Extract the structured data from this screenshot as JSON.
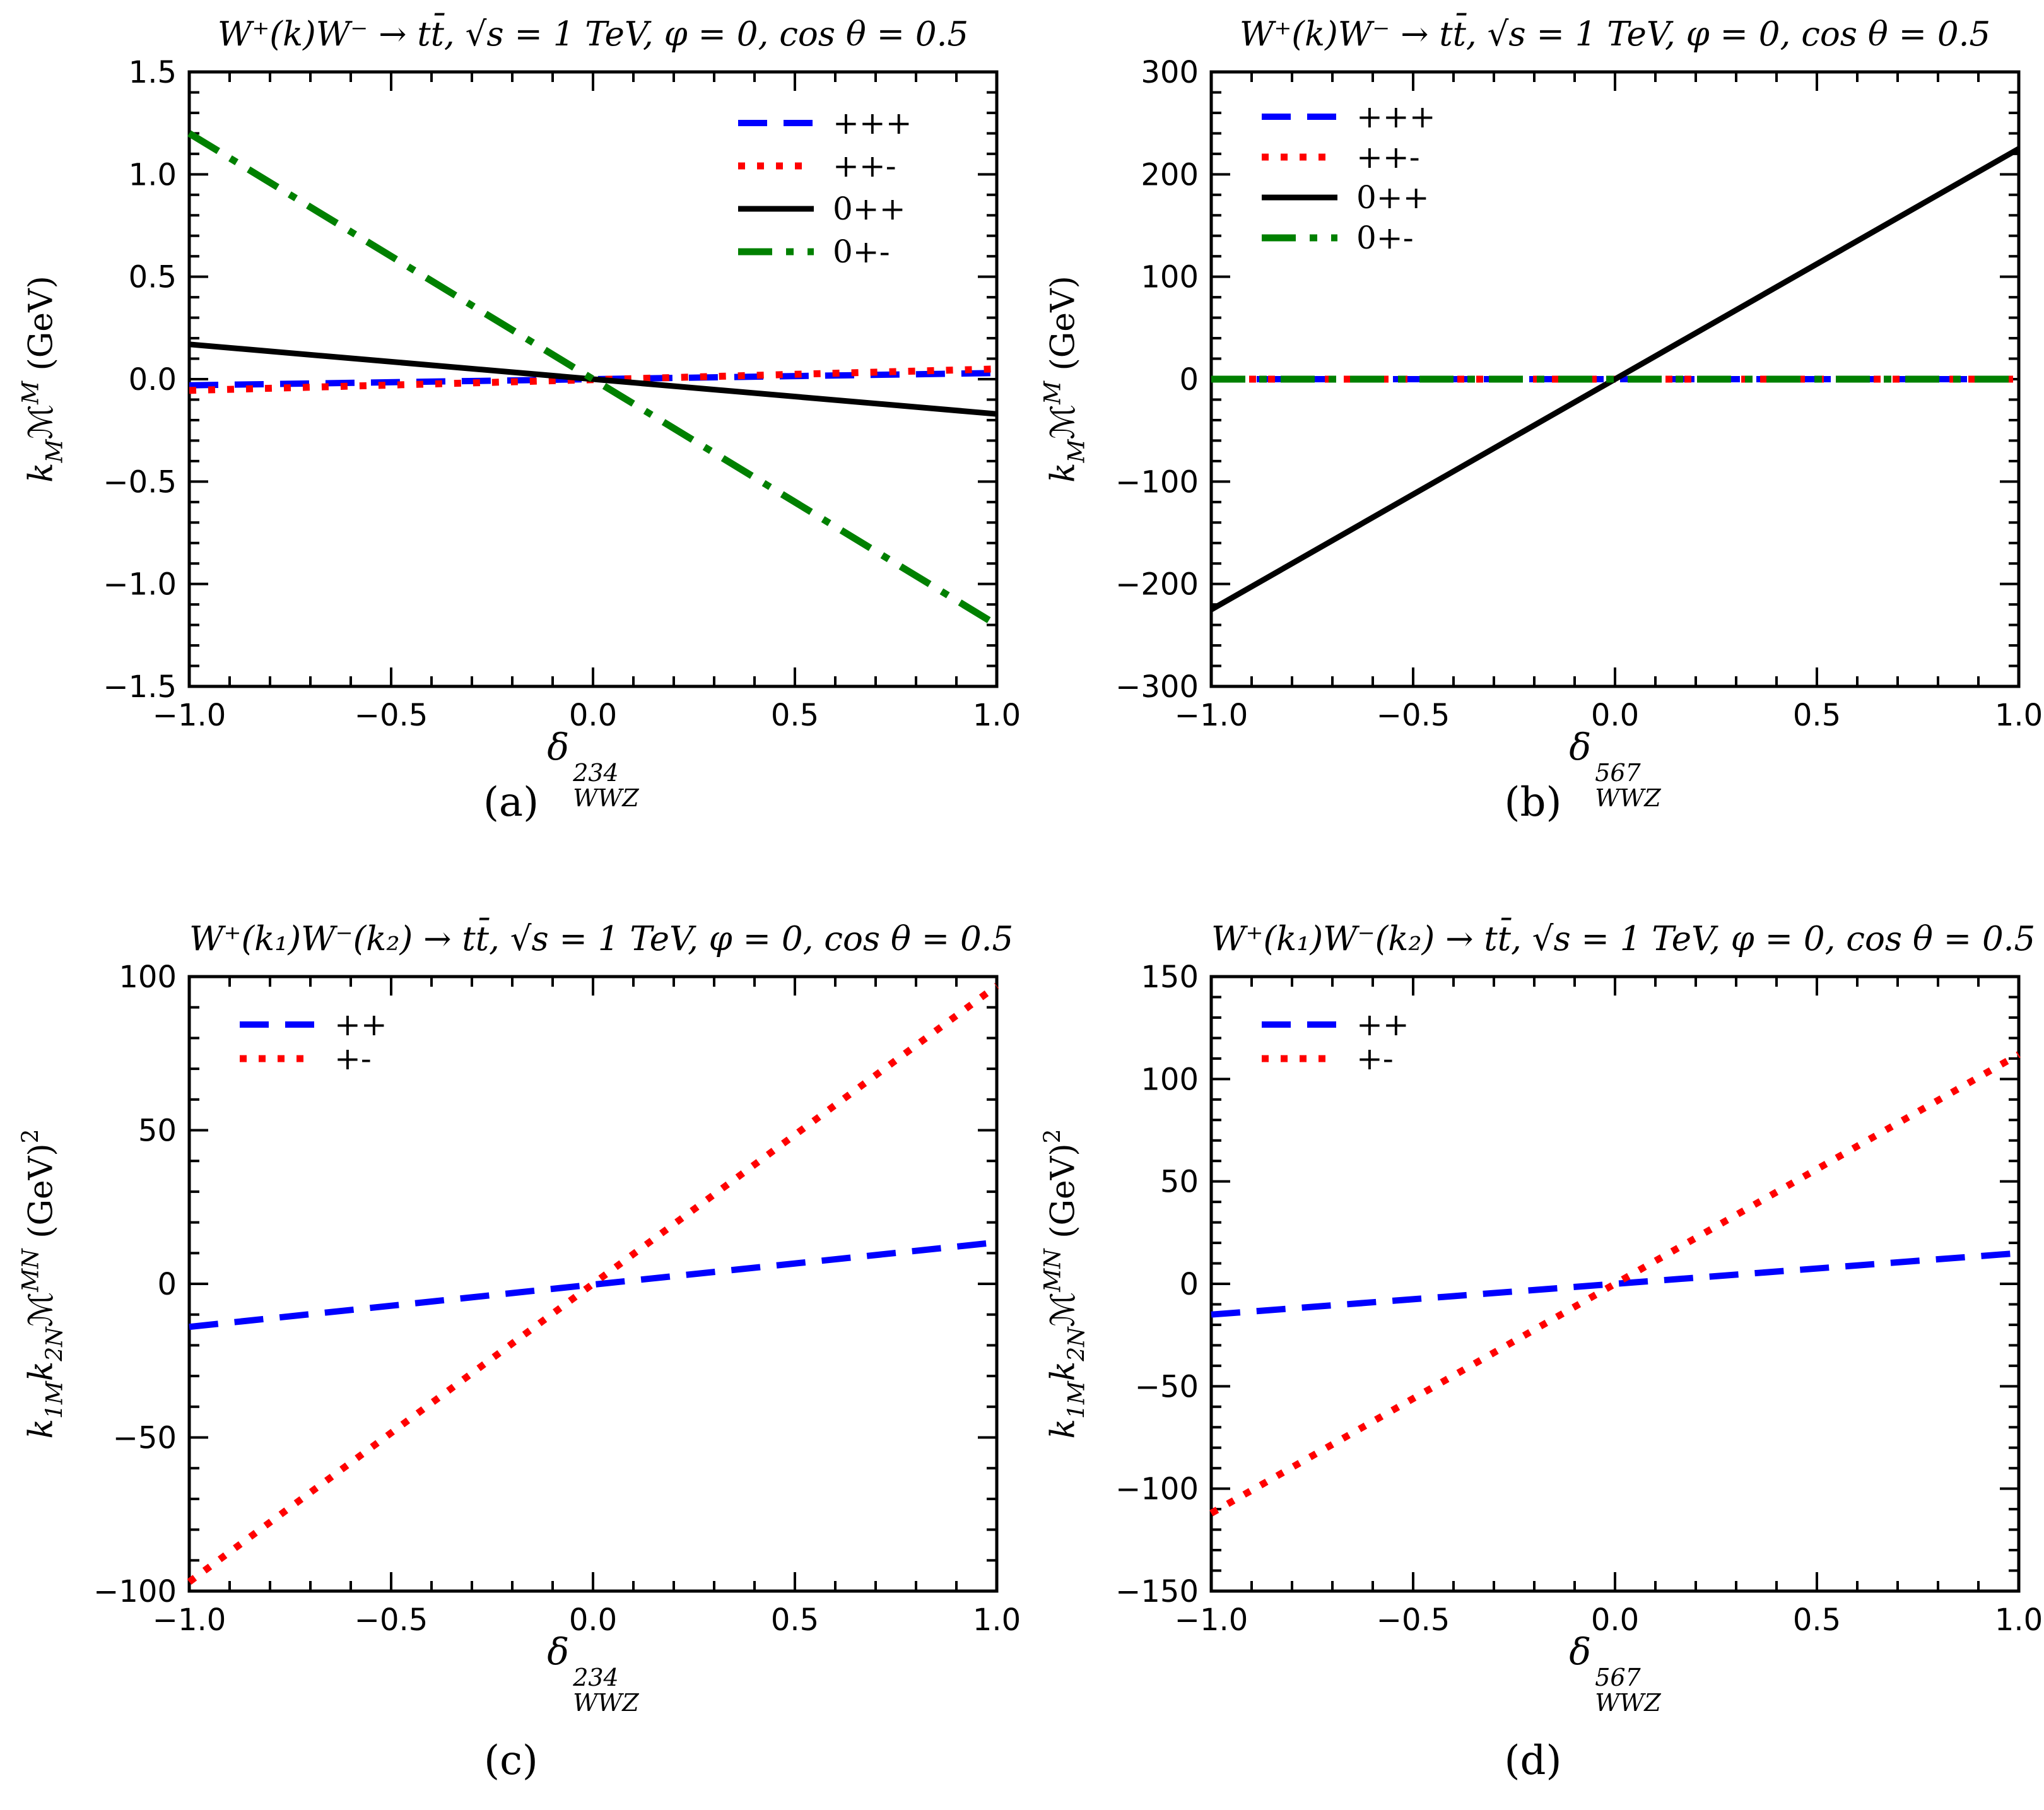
{
  "figure": {
    "background": "#ffffff",
    "colors": {
      "blue": "#0000ff",
      "red": "#ff0000",
      "black": "#000000",
      "green": "#008000"
    }
  },
  "chart_data": [
    {
      "id": "a",
      "type": "line",
      "title": "W⁺(k)W⁻ → tt̄,  √s = 1 TeV,  φ = 0, cos θ = 0.5",
      "caption": "(a)",
      "xlabel": {
        "base": "δ",
        "sup": "234",
        "sub": "WWZ"
      },
      "ylabel": {
        "k1": "k",
        "k1sub": "M",
        "k2": "",
        "k2sub": "",
        "M": "ℳ",
        "Msup": "M",
        "unit": " (GeV)",
        "unitSup": ""
      },
      "xlim": [
        -1,
        1
      ],
      "ylim": [
        -1.5,
        1.5
      ],
      "grid": false,
      "xticks": {
        "major": [
          -1,
          -0.5,
          0,
          0.5,
          1
        ],
        "labels": [
          "−1.0",
          "−0.5",
          "0.0",
          "0.5",
          "1.0"
        ],
        "minor_step": 0.1
      },
      "yticks": {
        "major": [
          -1.5,
          -1,
          -0.5,
          0,
          0.5,
          1,
          1.5
        ],
        "labels": [
          "−1.5",
          "−1.0",
          "−0.5",
          "0.0",
          "0.5",
          "1.0",
          "1.5"
        ],
        "minor_step": 0.1
      },
      "legend": {
        "loc": "upper-right",
        "entries": [
          {
            "label": "+++",
            "series": 0
          },
          {
            "label": "++-",
            "series": 1
          },
          {
            "label": "0++",
            "series": 2
          },
          {
            "label": "0+-",
            "series": 3
          }
        ]
      },
      "series": [
        {
          "name": "+++",
          "color": "#0000ff",
          "style": "dashed",
          "x": [
            -1,
            1
          ],
          "y": [
            -0.03,
            0.03
          ]
        },
        {
          "name": "++-",
          "color": "#ff0000",
          "style": "dotted",
          "x": [
            -1,
            1
          ],
          "y": [
            -0.055,
            0.05
          ]
        },
        {
          "name": "0++",
          "color": "#000000",
          "style": "solid",
          "x": [
            -1,
            1
          ],
          "y": [
            0.17,
            -0.17
          ]
        },
        {
          "name": "0+-",
          "color": "#008000",
          "style": "dashdot",
          "x": [
            -1,
            1
          ],
          "y": [
            1.2,
            -1.2
          ]
        }
      ]
    },
    {
      "id": "b",
      "type": "line",
      "title": "W⁺(k)W⁻ → tt̄,  √s = 1 TeV,  φ = 0, cos θ = 0.5",
      "caption": "(b)",
      "xlabel": {
        "base": "δ",
        "sup": "567",
        "sub": "WWZ"
      },
      "ylabel": {
        "k1": "k",
        "k1sub": "M",
        "k2": "",
        "k2sub": "",
        "M": "ℳ",
        "Msup": "M",
        "unit": " (GeV)",
        "unitSup": ""
      },
      "xlim": [
        -1,
        1
      ],
      "ylim": [
        -300,
        300
      ],
      "grid": false,
      "xticks": {
        "major": [
          -1,
          -0.5,
          0,
          0.5,
          1
        ],
        "labels": [
          "−1.0",
          "−0.5",
          "0.0",
          "0.5",
          "1.0"
        ],
        "minor_step": 0.1
      },
      "yticks": {
        "major": [
          -300,
          -200,
          -100,
          0,
          100,
          200,
          300
        ],
        "labels": [
          "−300",
          "−200",
          "−100",
          "0",
          "100",
          "200",
          "300"
        ],
        "minor_step": 20
      },
      "legend": {
        "loc": "upper-left",
        "entries": [
          {
            "label": "+++",
            "series": 0
          },
          {
            "label": "++-",
            "series": 1
          },
          {
            "label": "0++",
            "series": 2
          },
          {
            "label": "0+-",
            "series": 3
          }
        ]
      },
      "series": [
        {
          "name": "+++",
          "color": "#0000ff",
          "style": "dashed",
          "x": [
            -1,
            1
          ],
          "y": [
            0,
            0
          ]
        },
        {
          "name": "++-",
          "color": "#ff0000",
          "style": "dotted",
          "x": [
            -1,
            1
          ],
          "y": [
            0,
            0
          ]
        },
        {
          "name": "0++",
          "color": "#000000",
          "style": "solid",
          "x": [
            -1,
            1
          ],
          "y": [
            -225,
            225
          ]
        },
        {
          "name": "0+-",
          "color": "#008000",
          "style": "dashdot",
          "x": [
            -1,
            1
          ],
          "y": [
            0,
            0
          ]
        }
      ]
    },
    {
      "id": "c",
      "type": "line",
      "title": "W⁺(k₁)W⁻(k₂) → tt̄,  √s = 1 TeV,  φ = 0, cos θ = 0.5",
      "caption": "(c)",
      "xlabel": {
        "base": "δ",
        "sup": "234",
        "sub": "WWZ"
      },
      "ylabel": {
        "k1": "k",
        "k1sub": "1M",
        "k2": "k",
        "k2sub": "2N",
        "M": "ℳ",
        "Msup": "MN",
        "unit": " (GeV)",
        "unitSup": "2"
      },
      "xlim": [
        -1,
        1
      ],
      "ylim": [
        -100,
        100
      ],
      "grid": false,
      "xticks": {
        "major": [
          -1,
          -0.5,
          0,
          0.5,
          1
        ],
        "labels": [
          "−1.0",
          "−0.5",
          "0.0",
          "0.5",
          "1.0"
        ],
        "minor_step": 0.1
      },
      "yticks": {
        "major": [
          -100,
          -50,
          0,
          50,
          100
        ],
        "labels": [
          "−100",
          "−50",
          "0",
          "50",
          "100"
        ],
        "minor_step": 10
      },
      "legend": {
        "loc": "upper-left",
        "entries": [
          {
            "label": "++",
            "series": 0
          },
          {
            "label": "+-",
            "series": 1
          }
        ]
      },
      "series": [
        {
          "name": "++",
          "color": "#0000ff",
          "style": "dashed",
          "x": [
            -1,
            1
          ],
          "y": [
            -14,
            13.5
          ]
        },
        {
          "name": "+-",
          "color": "#ff0000",
          "style": "dotted",
          "x": [
            -1,
            1
          ],
          "y": [
            -97,
            97
          ]
        }
      ]
    },
    {
      "id": "d",
      "type": "line",
      "title": "W⁺(k₁)W⁻(k₂) → tt̄,  √s = 1 TeV,  φ = 0, cos θ = 0.5",
      "caption": "(d)",
      "xlabel": {
        "base": "δ",
        "sup": "567",
        "sub": "WWZ"
      },
      "ylabel": {
        "k1": "k",
        "k1sub": "1M",
        "k2": "k",
        "k2sub": "2N",
        "M": "ℳ",
        "Msup": "MN",
        "unit": " (GeV)",
        "unitSup": "2"
      },
      "xlim": [
        -1,
        1
      ],
      "ylim": [
        -150,
        150
      ],
      "grid": false,
      "xticks": {
        "major": [
          -1,
          -0.5,
          0,
          0.5,
          1
        ],
        "labels": [
          "−1.0",
          "−0.5",
          "0.0",
          "0.5",
          "1.0"
        ],
        "minor_step": 0.1
      },
      "yticks": {
        "major": [
          -150,
          -100,
          -50,
          0,
          50,
          100,
          150
        ],
        "labels": [
          "−150",
          "−100",
          "−50",
          "0",
          "50",
          "100",
          "150"
        ],
        "minor_step": 10
      },
      "legend": {
        "loc": "upper-left",
        "entries": [
          {
            "label": "++",
            "series": 0
          },
          {
            "label": "+-",
            "series": 1
          }
        ]
      },
      "series": [
        {
          "name": "++",
          "color": "#0000ff",
          "style": "dashed",
          "x": [
            -1,
            1
          ],
          "y": [
            -15,
            15
          ]
        },
        {
          "name": "+-",
          "color": "#ff0000",
          "style": "dotted",
          "x": [
            -1,
            1
          ],
          "y": [
            -112,
            112
          ]
        }
      ]
    }
  ]
}
